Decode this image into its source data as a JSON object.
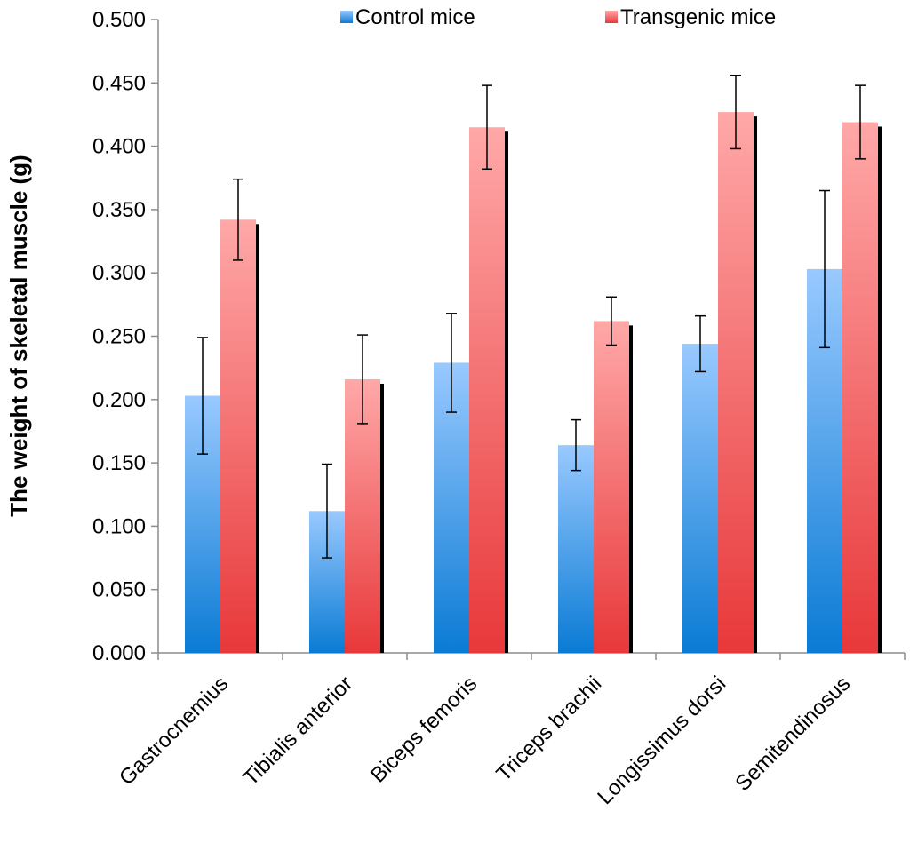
{
  "chart_data": {
    "type": "bar",
    "title": "",
    "xlabel": "",
    "ylabel": "The weight of skeletal muscle (g)",
    "ylim": [
      0,
      0.5
    ],
    "ytick_step": 0.05,
    "ytick_labels": [
      "0.000",
      "0.050",
      "0.100",
      "0.150",
      "0.200",
      "0.250",
      "0.300",
      "0.350",
      "0.400",
      "0.450",
      "0.500"
    ],
    "categories": [
      "Gastrocnemius",
      "Tibialis anterior",
      "Biceps femoris",
      "Triceps brachii",
      "Longissimus dorsi",
      "Semitendinosus"
    ],
    "legend_position": "top",
    "series": [
      {
        "name": "Control mice",
        "values": [
          0.203,
          0.112,
          0.229,
          0.164,
          0.244,
          0.303
        ],
        "errors": [
          0.046,
          0.037,
          0.039,
          0.02,
          0.022,
          0.062
        ],
        "color_top": "#99c9ff",
        "color_bottom": "#0a7bd4"
      },
      {
        "name": "Transgenic mice",
        "values": [
          0.342,
          0.216,
          0.415,
          0.262,
          0.427,
          0.419
        ],
        "errors": [
          0.032,
          0.035,
          0.033,
          0.019,
          0.029,
          0.029
        ],
        "color_top": "#ffa8a8",
        "color_bottom": "#e8383a"
      }
    ]
  }
}
